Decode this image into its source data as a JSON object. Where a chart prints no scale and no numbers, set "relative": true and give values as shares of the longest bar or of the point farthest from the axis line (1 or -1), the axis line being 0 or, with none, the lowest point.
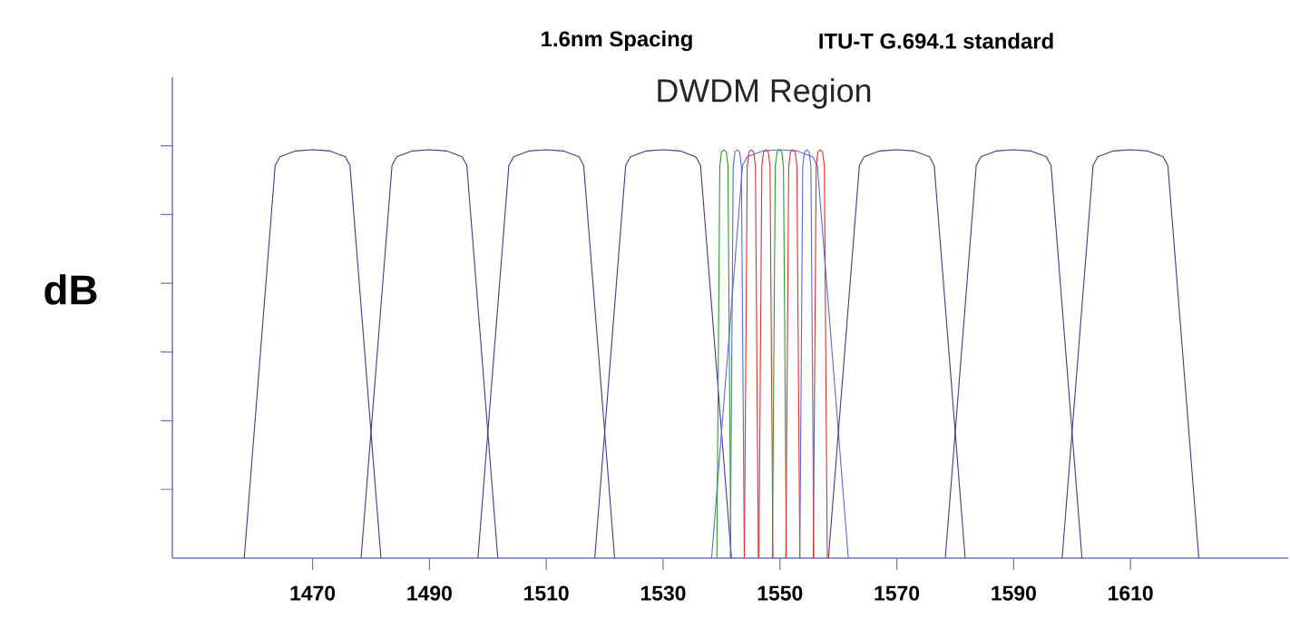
{
  "chart_data": {
    "type": "line",
    "title": "DWDM Region",
    "ylabel": "dB",
    "annotations": [
      "1.6nm Spacing",
      "ITU-T G.694.1 standard"
    ],
    "relative": true,
    "marker": "none",
    "line_style": "solid",
    "xlim": [
      1446,
      1637
    ],
    "xticks": [
      1470,
      1490,
      1510,
      1530,
      1550,
      1570,
      1590,
      1610
    ],
    "series": [
      {
        "color": "#3c3c8c",
        "x": [
          1458.3,
          1463.6,
          1464.4,
          1467,
          1470,
          1473,
          1475.6,
          1476.4,
          1481.7
        ],
        "values": [
          0,
          0.962,
          0.983,
          0.997,
          1,
          0.997,
          0.983,
          0.962,
          0
        ]
      },
      {
        "color": "#3c3c8c",
        "x": [
          1478.3,
          1483.6,
          1484.4,
          1487,
          1490,
          1493,
          1495.6,
          1496.4,
          1501.7
        ],
        "values": [
          0,
          0.962,
          0.983,
          0.997,
          1,
          0.997,
          0.983,
          0.962,
          0
        ]
      },
      {
        "color": "#3c3c8c",
        "x": [
          1498.3,
          1503.6,
          1504.4,
          1507,
          1510,
          1513,
          1515.6,
          1516.4,
          1521.7
        ],
        "values": [
          0,
          0.962,
          0.983,
          0.997,
          1,
          0.997,
          0.983,
          0.962,
          0
        ]
      },
      {
        "color": "#3c3c8c",
        "x": [
          1518.3,
          1523.6,
          1524.4,
          1527,
          1530,
          1533,
          1535.6,
          1536.4,
          1541.7
        ],
        "values": [
          0,
          0.962,
          0.983,
          0.997,
          1,
          0.997,
          0.983,
          0.962,
          0
        ]
      },
      {
        "color": "#5a6ad8",
        "x": [
          1538.3,
          1543.6,
          1544.4,
          1547,
          1550,
          1553,
          1555.6,
          1556.4,
          1561.7
        ],
        "values": [
          0,
          0.962,
          0.983,
          0.997,
          1,
          0.997,
          0.983,
          0.962,
          0
        ]
      },
      {
        "color": "#3c3c8c",
        "x": [
          1558.3,
          1563.6,
          1564.4,
          1567,
          1570,
          1573,
          1575.6,
          1576.4,
          1581.7
        ],
        "values": [
          0,
          0.962,
          0.983,
          0.997,
          1,
          0.997,
          0.983,
          0.962,
          0
        ]
      },
      {
        "color": "#3c3c8c",
        "x": [
          1578.3,
          1583.6,
          1584.4,
          1587,
          1590,
          1593,
          1595.6,
          1596.4,
          1601.7
        ],
        "values": [
          0,
          0.962,
          0.983,
          0.997,
          1,
          0.997,
          0.983,
          0.962,
          0
        ]
      },
      {
        "color": "#3c3c8c",
        "x": [
          1598.3,
          1603.6,
          1604.4,
          1607,
          1610,
          1613,
          1615.6,
          1616.4,
          1621.7
        ],
        "values": [
          0,
          0.962,
          0.983,
          0.997,
          1,
          0.997,
          0.983,
          0.962,
          0
        ]
      },
      {
        "color": "#2e9a2e",
        "x": [
          1539.2,
          1539.7,
          1540.0,
          1540.4,
          1540.8,
          1541.1,
          1541.6
        ],
        "values": [
          0,
          0.96,
          0.995,
          1,
          0.995,
          0.96,
          0
        ]
      },
      {
        "color": "#5a6ad8",
        "x": [
          1541.5,
          1542.0,
          1542.3,
          1542.7,
          1543.1,
          1543.4,
          1543.9
        ],
        "values": [
          0,
          0.96,
          0.995,
          1,
          0.995,
          0.96,
          0
        ]
      },
      {
        "color": "#e03030",
        "x": [
          1543.9,
          1544.4,
          1544.7,
          1545.1,
          1545.5,
          1545.8,
          1546.3
        ],
        "values": [
          0,
          0.96,
          0.995,
          1,
          0.995,
          0.96,
          0
        ]
      },
      {
        "color": "#e03030",
        "x": [
          1546.4,
          1546.9,
          1547.2,
          1547.6,
          1548.0,
          1548.3,
          1548.8
        ],
        "values": [
          0,
          0.96,
          0.995,
          1,
          0.995,
          0.96,
          0
        ]
      },
      {
        "color": "#2e9a2e",
        "x": [
          1548.7,
          1549.2,
          1549.5,
          1549.9,
          1550.3,
          1550.6,
          1551.1
        ],
        "values": [
          0,
          0.96,
          0.995,
          1,
          0.995,
          0.96,
          0
        ]
      },
      {
        "color": "#e03030",
        "x": [
          1551.0,
          1551.5,
          1551.8,
          1552.2,
          1552.6,
          1552.9,
          1553.4
        ],
        "values": [
          0,
          0.96,
          0.995,
          1,
          0.995,
          0.96,
          0
        ]
      },
      {
        "color": "#5a6ad8",
        "x": [
          1553.4,
          1553.9,
          1554.2,
          1554.6,
          1555.0,
          1555.3,
          1555.8
        ],
        "values": [
          0,
          0.96,
          0.995,
          1,
          0.995,
          0.96,
          0
        ]
      },
      {
        "color": "#e03030",
        "x": [
          1555.7,
          1556.2,
          1556.5,
          1556.9,
          1557.3,
          1557.6,
          1558.1
        ],
        "values": [
          0,
          0.96,
          0.995,
          1,
          0.995,
          0.96,
          0
        ]
      }
    ]
  }
}
